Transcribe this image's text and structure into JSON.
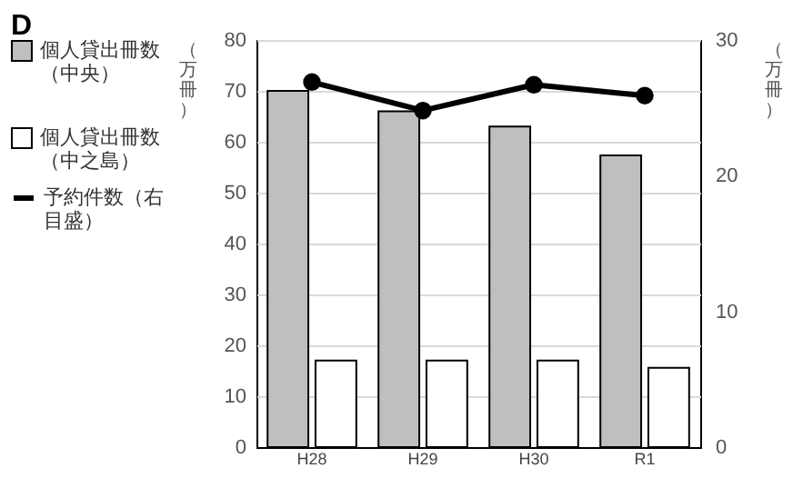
{
  "chart_data": {
    "type": "bar",
    "title": "D",
    "categories": [
      "H28",
      "H29",
      "H30",
      "R1"
    ],
    "ylabel": "（万冊）",
    "y2label": "（万冊）",
    "ylim": [
      0,
      80
    ],
    "yticks": [
      0,
      10,
      20,
      30,
      40,
      50,
      60,
      70,
      80
    ],
    "y2lim": [
      0,
      30
    ],
    "y2ticks": [
      0,
      10,
      20,
      30
    ],
    "grid": "y",
    "legend": "left",
    "marker": "circle",
    "series": [
      {
        "name": "個人貸出冊数（中央）",
        "color": "#bfbfbf",
        "values": [
          70,
          66,
          63,
          57.3
        ]
      },
      {
        "name": "個人貸出冊数（中之島）",
        "color": "#ffffff",
        "values": [
          17,
          17,
          17,
          15.6
        ]
      },
      {
        "name": "予約件数（右目盛）",
        "type": "line",
        "axis": "y2",
        "color": "#000000",
        "values": [
          26.9,
          24.8,
          26.7,
          25.9
        ]
      }
    ]
  }
}
